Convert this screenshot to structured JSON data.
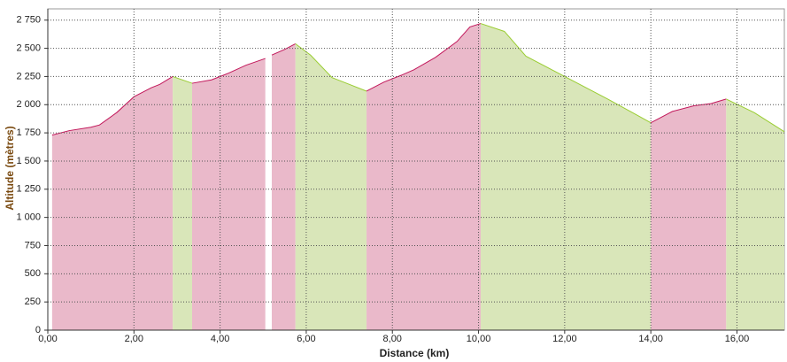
{
  "chart_data": {
    "type": "area",
    "x_label": "Distance (km)",
    "y_label": "Altitude (mètres)",
    "xlim": [
      0,
      17.1
    ],
    "ylim": [
      0,
      2850
    ],
    "xticks": [
      {
        "value": 0,
        "label": "0,00"
      },
      {
        "value": 2,
        "label": "2,00"
      },
      {
        "value": 4,
        "label": "4,00"
      },
      {
        "value": 6,
        "label": "6,00"
      },
      {
        "value": 8,
        "label": "8,00"
      },
      {
        "value": 10,
        "label": "10,00"
      },
      {
        "value": 12,
        "label": "12,00"
      },
      {
        "value": 14,
        "label": "14,00"
      },
      {
        "value": 16,
        "label": "16,00"
      }
    ],
    "yticks": [
      0,
      250,
      500,
      750,
      {
        "value": 1000,
        "label": "1 000"
      },
      {
        "value": 1250,
        "label": "1 250"
      },
      {
        "value": 1500,
        "label": "1 500"
      },
      {
        "value": 1750,
        "label": "1 750"
      },
      {
        "value": 2000,
        "label": "2 000"
      },
      {
        "value": 2250,
        "label": "2 250"
      },
      {
        "value": 2500,
        "label": "2 500"
      },
      {
        "value": 2750,
        "label": "2 750"
      }
    ],
    "grid": true,
    "segments": [
      {
        "color": "#eab9ca",
        "line_color": "#c2185b",
        "x": [
          0.1,
          0.5,
          1.0,
          1.2,
          1.6,
          2.0,
          2.4,
          2.6,
          2.9
        ],
        "values": [
          1730,
          1770,
          1800,
          1820,
          1930,
          2070,
          2150,
          2180,
          2250
        ]
      },
      {
        "color": "#d9e6b9",
        "line_color": "#9acd32",
        "x": [
          2.9,
          3.35
        ],
        "values": [
          2250,
          2190
        ]
      },
      {
        "color": "#eab9ca",
        "line_color": "#c2185b",
        "x": [
          3.35,
          3.8,
          4.2,
          4.6,
          5.05
        ],
        "values": [
          2190,
          2220,
          2280,
          2350,
          2410
        ]
      },
      {
        "color": "#eab9ca",
        "line_color": "#c2185b",
        "x": [
          5.2,
          5.5,
          5.75
        ],
        "values": [
          2440,
          2490,
          2540
        ]
      },
      {
        "color": "#d9e6b9",
        "line_color": "#9acd32",
        "x": [
          5.75,
          6.1,
          6.6,
          7.0,
          7.4
        ],
        "values": [
          2540,
          2440,
          2240,
          2180,
          2120
        ]
      },
      {
        "color": "#eab9ca",
        "line_color": "#c2185b",
        "x": [
          7.4,
          7.8,
          8.2,
          8.5,
          9.0,
          9.5,
          9.8,
          10.05
        ],
        "values": [
          2120,
          2200,
          2260,
          2310,
          2420,
          2560,
          2690,
          2720
        ]
      },
      {
        "color": "#d9e6b9",
        "line_color": "#9acd32",
        "x": [
          10.05,
          10.6,
          11.1,
          12.0,
          13.0,
          14.0
        ],
        "values": [
          2720,
          2650,
          2430,
          2250,
          2050,
          1840
        ]
      },
      {
        "color": "#eab9ca",
        "line_color": "#c2185b",
        "x": [
          14.0,
          14.5,
          15.0,
          15.4,
          15.75
        ],
        "values": [
          1840,
          1940,
          1990,
          2010,
          2050
        ]
      },
      {
        "color": "#d9e6b9",
        "line_color": "#9acd32",
        "x": [
          15.75,
          16.4,
          17.1
        ],
        "values": [
          2050,
          1930,
          1760
        ]
      }
    ]
  }
}
